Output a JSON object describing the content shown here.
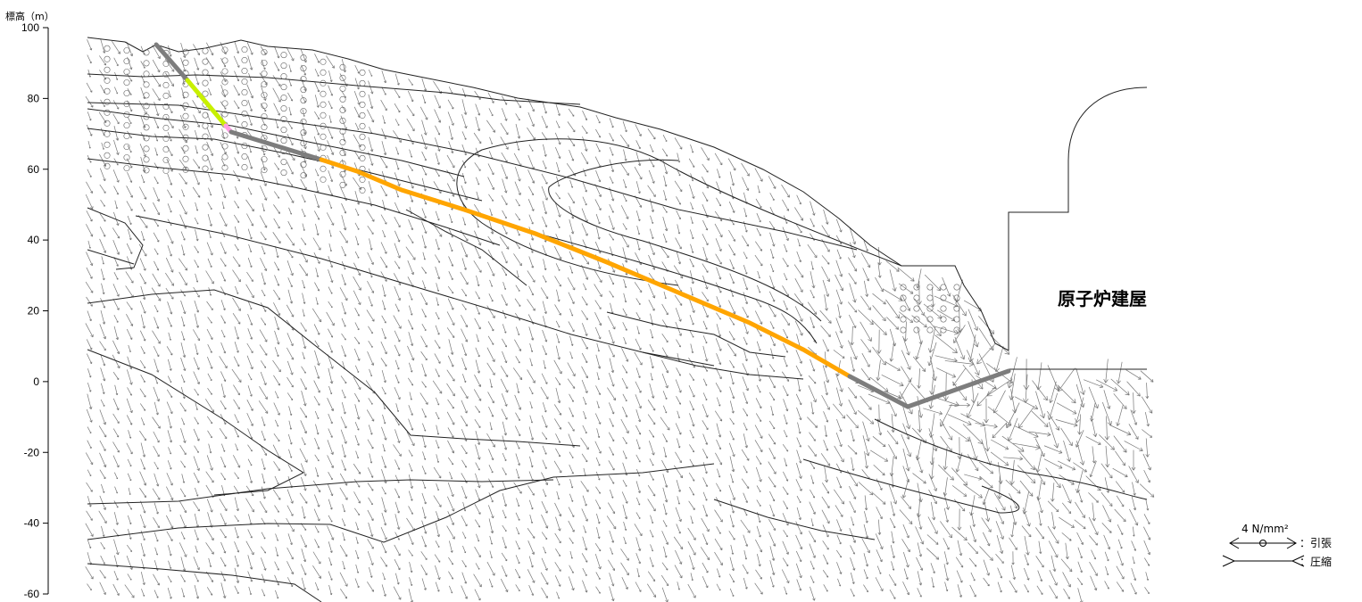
{
  "axis": {
    "title": "標高（m）",
    "ticks": [
      "100",
      "80",
      "60",
      "40",
      "20",
      "0",
      "-20",
      "-40",
      "-60"
    ],
    "tick_values": [
      100,
      80,
      60,
      40,
      20,
      0,
      -20,
      -40,
      -60
    ]
  },
  "building": {
    "label": "原子炉建屋"
  },
  "legend": {
    "scale": "4 N/mm²",
    "tension_label": "：引張",
    "compression_label": "：圧縮"
  },
  "colors": {
    "slip_gray": "#7d7d7d",
    "slip_orange": "#ffa500",
    "slip_lime": "#c8f000",
    "slip_pink": "#ff9ee6",
    "stress_marks": "#555555",
    "boundary": "#222222"
  }
}
